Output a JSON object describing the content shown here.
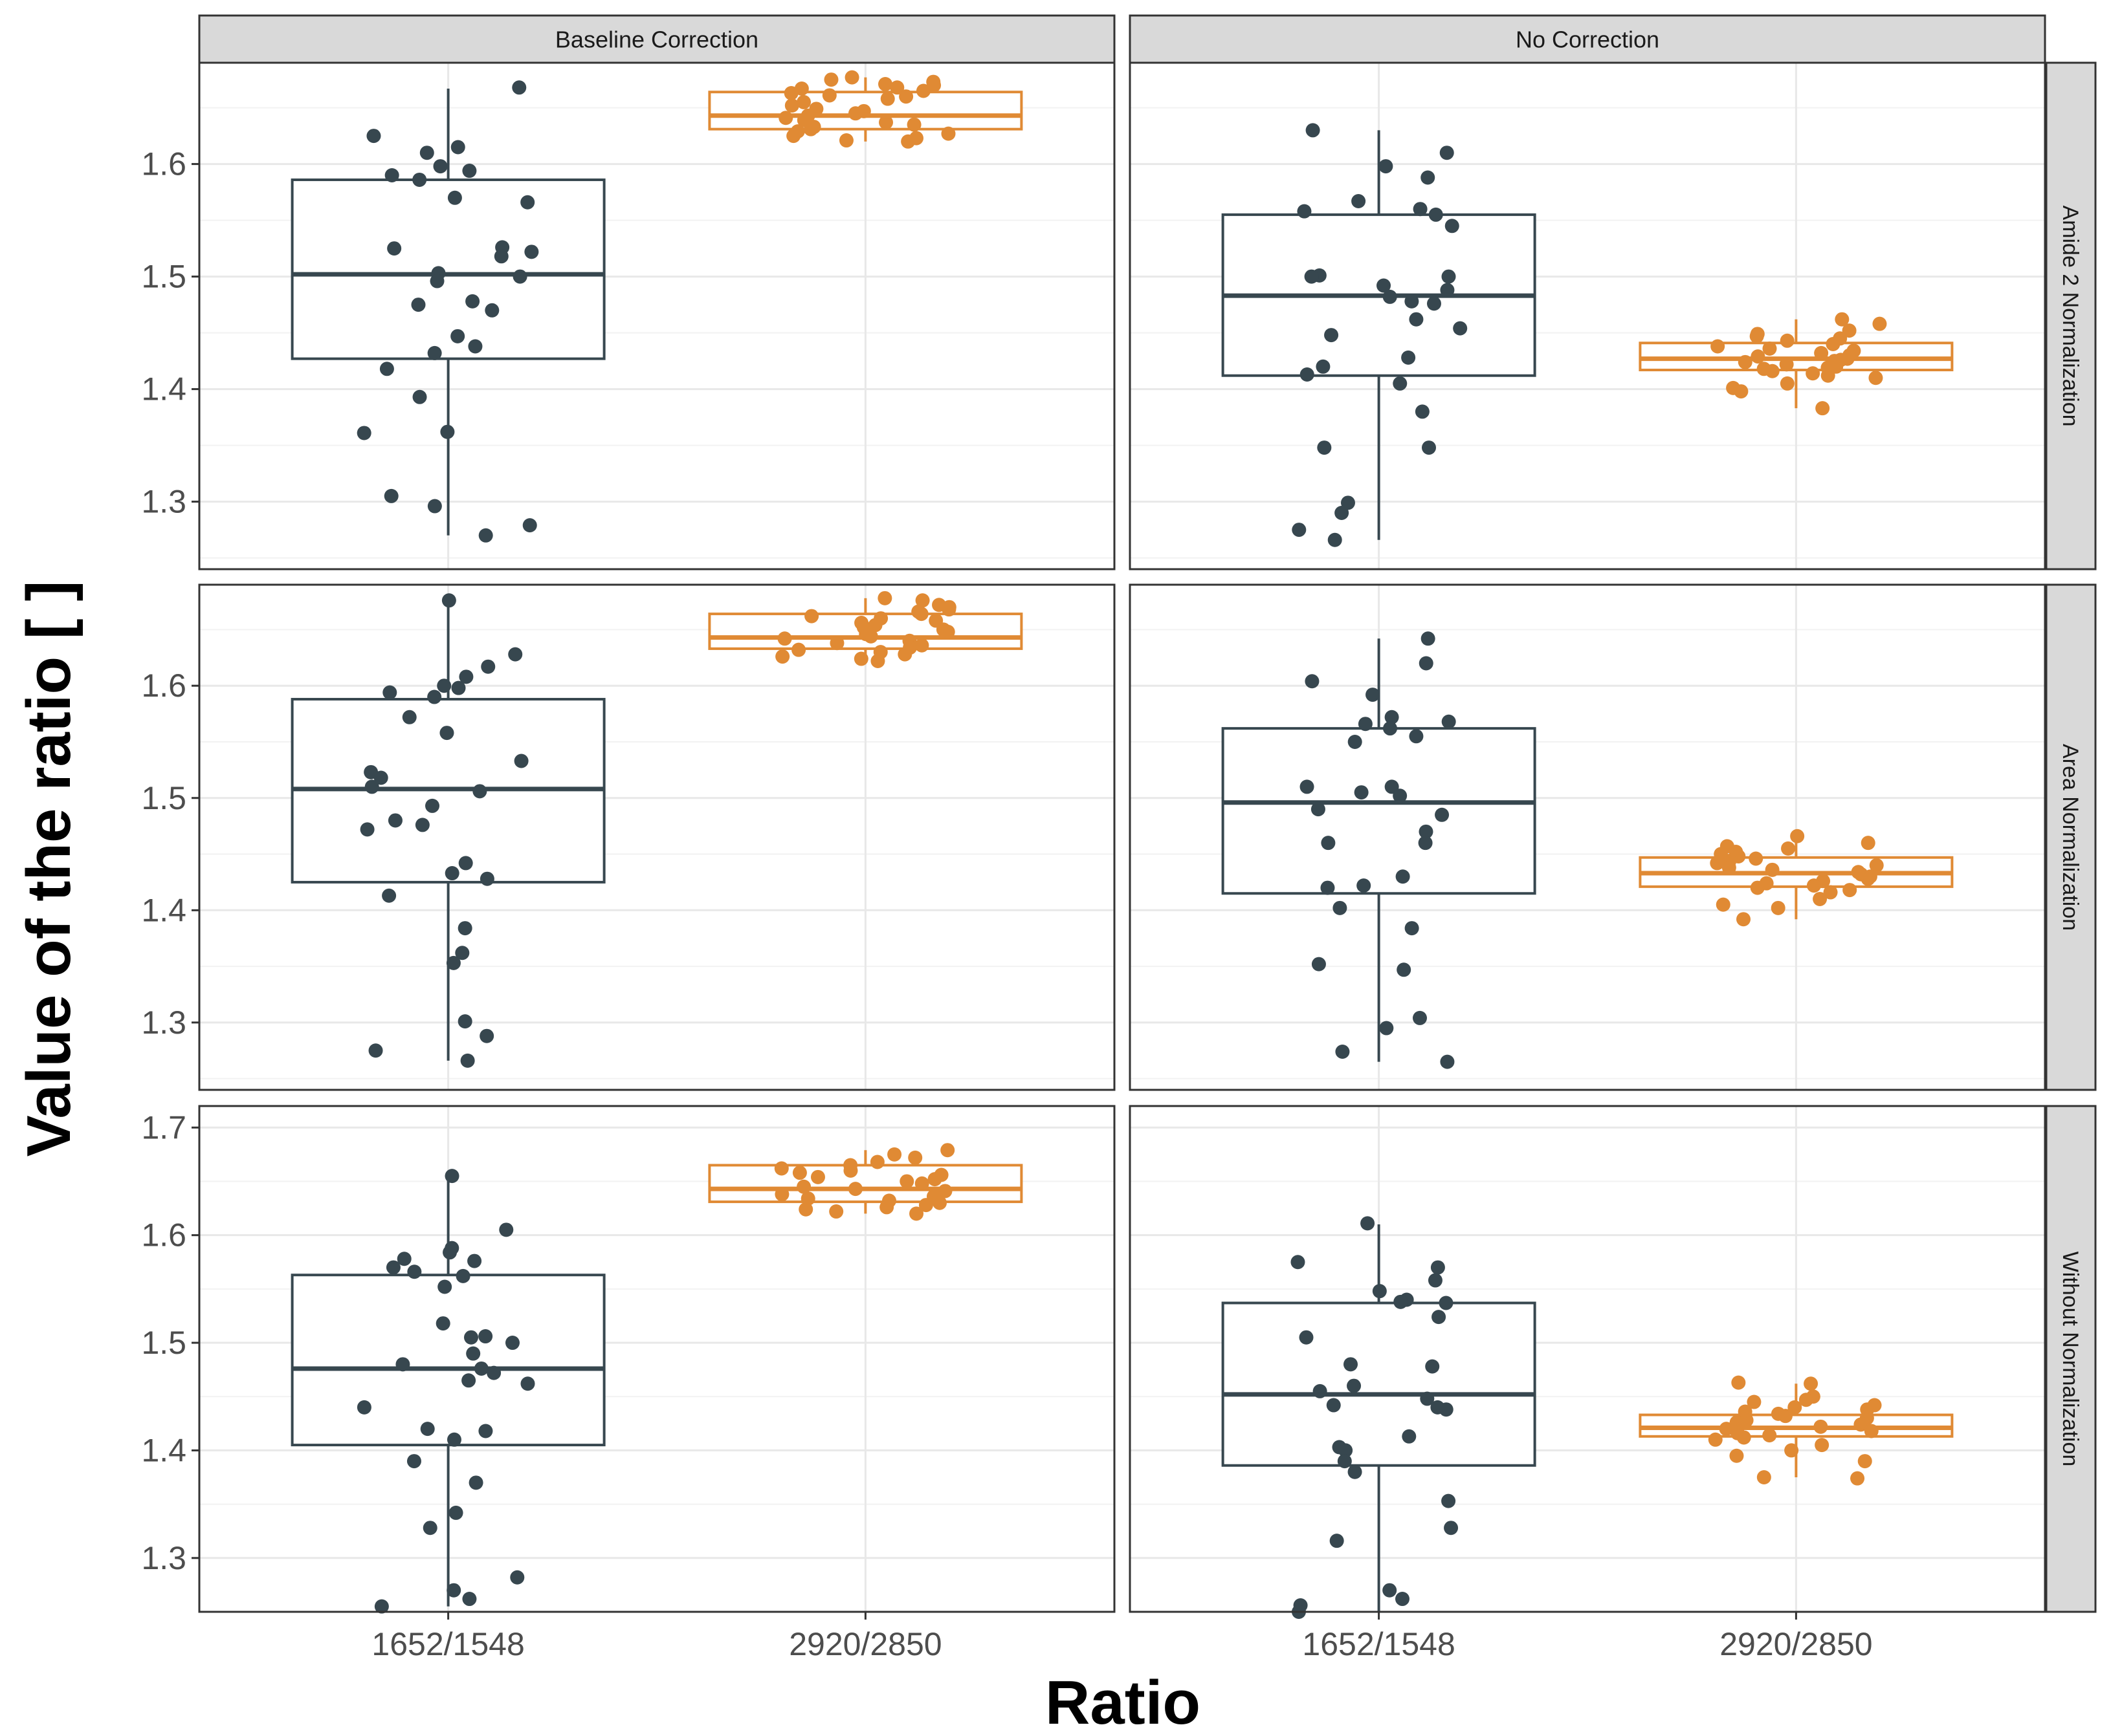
{
  "chart_data": {
    "type": "boxplot",
    "xlabel": "Ratio",
    "ylabel": "Value of the ratio [ ]",
    "categories": [
      "1652/1548",
      "2920/2850"
    ],
    "column_facets": [
      "Baseline Correction",
      "No Correction"
    ],
    "row_facets": [
      "Amide 2 Normalization",
      "Area Normalization",
      "Without Normalization"
    ],
    "rows_ylim": [
      [
        1.24,
        1.69
      ],
      [
        1.24,
        1.69
      ],
      [
        1.25,
        1.72
      ]
    ],
    "rows_ticks": [
      [
        1.3,
        1.4,
        1.5,
        1.6
      ],
      [
        1.3,
        1.4,
        1.5,
        1.6
      ],
      [
        1.3,
        1.4,
        1.5,
        1.6,
        1.7
      ]
    ],
    "series_colors": {
      "1652/1548": "#37474f",
      "2920/2850": "#e08a34"
    },
    "grid": true,
    "panels": [
      {
        "row": "Amide 2 Normalization",
        "col": "Baseline Correction",
        "boxes": [
          {
            "category": "1652/1548",
            "whisker_low": 1.27,
            "q1": 1.427,
            "median": 1.502,
            "q3": 1.586,
            "whisker_high": 1.667,
            "points": [
              1.668,
              1.625,
              1.615,
              1.61,
              1.598,
              1.594,
              1.59,
              1.586,
              1.57,
              1.566,
              1.526,
              1.525,
              1.522,
              1.518,
              1.503,
              1.5,
              1.496,
              1.478,
              1.475,
              1.47,
              1.447,
              1.438,
              1.432,
              1.418,
              1.393,
              1.362,
              1.361,
              1.305,
              1.296,
              1.279,
              1.27
            ]
          },
          {
            "category": "2920/2850",
            "whisker_low": 1.62,
            "q1": 1.631,
            "median": 1.643,
            "q3": 1.664,
            "whisker_high": 1.677,
            "points": [
              1.677,
              1.675,
              1.673,
              1.671,
              1.67,
              1.668,
              1.667,
              1.665,
              1.663,
              1.661,
              1.66,
              1.658,
              1.655,
              1.652,
              1.649,
              1.647,
              1.645,
              1.643,
              1.641,
              1.639,
              1.637,
              1.635,
              1.633,
              1.631,
              1.629,
              1.627,
              1.625,
              1.623,
              1.621,
              1.62
            ]
          }
        ]
      },
      {
        "row": "Amide 2 Normalization",
        "col": "No Correction",
        "boxes": [
          {
            "category": "1652/1548",
            "whisker_low": 1.266,
            "q1": 1.412,
            "median": 1.483,
            "q3": 1.555,
            "whisker_high": 1.63,
            "points": [
              1.63,
              1.61,
              1.598,
              1.588,
              1.567,
              1.56,
              1.558,
              1.555,
              1.545,
              1.501,
              1.5,
              1.5,
              1.492,
              1.488,
              1.482,
              1.478,
              1.476,
              1.462,
              1.454,
              1.448,
              1.428,
              1.42,
              1.413,
              1.405,
              1.38,
              1.348,
              1.348,
              1.299,
              1.29,
              1.275,
              1.266
            ]
          },
          {
            "category": "2920/2850",
            "whisker_low": 1.383,
            "q1": 1.417,
            "median": 1.427,
            "q3": 1.441,
            "whisker_high": 1.462,
            "points": [
              1.462,
              1.458,
              1.452,
              1.449,
              1.447,
              1.445,
              1.443,
              1.44,
              1.438,
              1.436,
              1.434,
              1.432,
              1.43,
              1.429,
              1.427,
              1.426,
              1.425,
              1.424,
              1.422,
              1.42,
              1.419,
              1.418,
              1.416,
              1.414,
              1.412,
              1.41,
              1.405,
              1.401,
              1.398,
              1.383
            ]
          }
        ]
      },
      {
        "row": "Area Normalization",
        "col": "Baseline Correction",
        "boxes": [
          {
            "category": "1652/1548",
            "whisker_low": 1.266,
            "q1": 1.425,
            "median": 1.508,
            "q3": 1.588,
            "whisker_high": 1.675,
            "points": [
              1.676,
              1.628,
              1.617,
              1.608,
              1.6,
              1.598,
              1.594,
              1.59,
              1.572,
              1.558,
              1.533,
              1.523,
              1.518,
              1.51,
              1.506,
              1.493,
              1.48,
              1.476,
              1.472,
              1.442,
              1.433,
              1.428,
              1.413,
              1.384,
              1.362,
              1.353,
              1.301,
              1.288,
              1.275,
              1.266
            ]
          },
          {
            "category": "2920/2850",
            "whisker_low": 1.622,
            "q1": 1.633,
            "median": 1.643,
            "q3": 1.664,
            "whisker_high": 1.678,
            "points": [
              1.678,
              1.676,
              1.672,
              1.67,
              1.668,
              1.666,
              1.664,
              1.662,
              1.66,
              1.658,
              1.656,
              1.654,
              1.652,
              1.65,
              1.648,
              1.646,
              1.644,
              1.642,
              1.64,
              1.638,
              1.636,
              1.634,
              1.632,
              1.63,
              1.628,
              1.626,
              1.624,
              1.622
            ]
          }
        ]
      },
      {
        "row": "Area Normalization",
        "col": "No Correction",
        "boxes": [
          {
            "category": "1652/1548",
            "whisker_low": 1.265,
            "q1": 1.415,
            "median": 1.496,
            "q3": 1.562,
            "whisker_high": 1.642,
            "points": [
              1.642,
              1.62,
              1.604,
              1.592,
              1.572,
              1.568,
              1.566,
              1.562,
              1.555,
              1.55,
              1.51,
              1.51,
              1.505,
              1.502,
              1.49,
              1.485,
              1.47,
              1.46,
              1.46,
              1.43,
              1.422,
              1.42,
              1.402,
              1.384,
              1.352,
              1.347,
              1.304,
              1.295,
              1.274,
              1.265
            ]
          },
          {
            "category": "2920/2850",
            "whisker_low": 1.392,
            "q1": 1.421,
            "median": 1.433,
            "q3": 1.447,
            "whisker_high": 1.466,
            "points": [
              1.466,
              1.46,
              1.457,
              1.455,
              1.452,
              1.45,
              1.448,
              1.446,
              1.444,
              1.442,
              1.44,
              1.438,
              1.436,
              1.434,
              1.432,
              1.43,
              1.428,
              1.426,
              1.424,
              1.422,
              1.42,
              1.418,
              1.416,
              1.41,
              1.405,
              1.402,
              1.392
            ]
          }
        ]
      },
      {
        "row": "Without Normalization",
        "col": "Baseline Correction",
        "boxes": [
          {
            "category": "1652/1548",
            "whisker_low": 1.255,
            "q1": 1.405,
            "median": 1.476,
            "q3": 1.563,
            "whisker_high": 1.653,
            "points": [
              1.655,
              1.605,
              1.588,
              1.584,
              1.578,
              1.576,
              1.57,
              1.566,
              1.562,
              1.552,
              1.518,
              1.506,
              1.505,
              1.5,
              1.49,
              1.48,
              1.476,
              1.472,
              1.465,
              1.462,
              1.44,
              1.42,
              1.418,
              1.41,
              1.39,
              1.37,
              1.342,
              1.328,
              1.282,
              1.27,
              1.262,
              1.255
            ]
          },
          {
            "category": "2920/2850",
            "whisker_low": 1.62,
            "q1": 1.631,
            "median": 1.643,
            "q3": 1.665,
            "whisker_high": 1.679,
            "points": [
              1.679,
              1.675,
              1.672,
              1.668,
              1.665,
              1.662,
              1.66,
              1.658,
              1.656,
              1.654,
              1.652,
              1.65,
              1.648,
              1.645,
              1.643,
              1.641,
              1.638,
              1.636,
              1.634,
              1.632,
              1.63,
              1.628,
              1.626,
              1.624,
              1.622,
              1.62
            ]
          }
        ]
      },
      {
        "row": "Without Normalization",
        "col": "No Correction",
        "boxes": [
          {
            "category": "1652/1548",
            "whisker_low": 1.25,
            "q1": 1.386,
            "median": 1.452,
            "q3": 1.537,
            "whisker_high": 1.61,
            "points": [
              1.611,
              1.575,
              1.57,
              1.558,
              1.548,
              1.54,
              1.538,
              1.537,
              1.524,
              1.505,
              1.48,
              1.478,
              1.46,
              1.455,
              1.448,
              1.442,
              1.44,
              1.438,
              1.413,
              1.403,
              1.4,
              1.39,
              1.38,
              1.353,
              1.328,
              1.316,
              1.27,
              1.262,
              1.256,
              1.25
            ]
          },
          {
            "category": "2920/2850",
            "whisker_low": 1.375,
            "q1": 1.413,
            "median": 1.421,
            "q3": 1.433,
            "whisker_high": 1.462,
            "points": [
              1.463,
              1.462,
              1.45,
              1.447,
              1.445,
              1.442,
              1.44,
              1.438,
              1.436,
              1.434,
              1.432,
              1.43,
              1.428,
              1.426,
              1.424,
              1.422,
              1.42,
              1.418,
              1.416,
              1.414,
              1.412,
              1.41,
              1.405,
              1.4,
              1.395,
              1.39,
              1.375,
              1.374
            ]
          }
        ]
      }
    ]
  }
}
